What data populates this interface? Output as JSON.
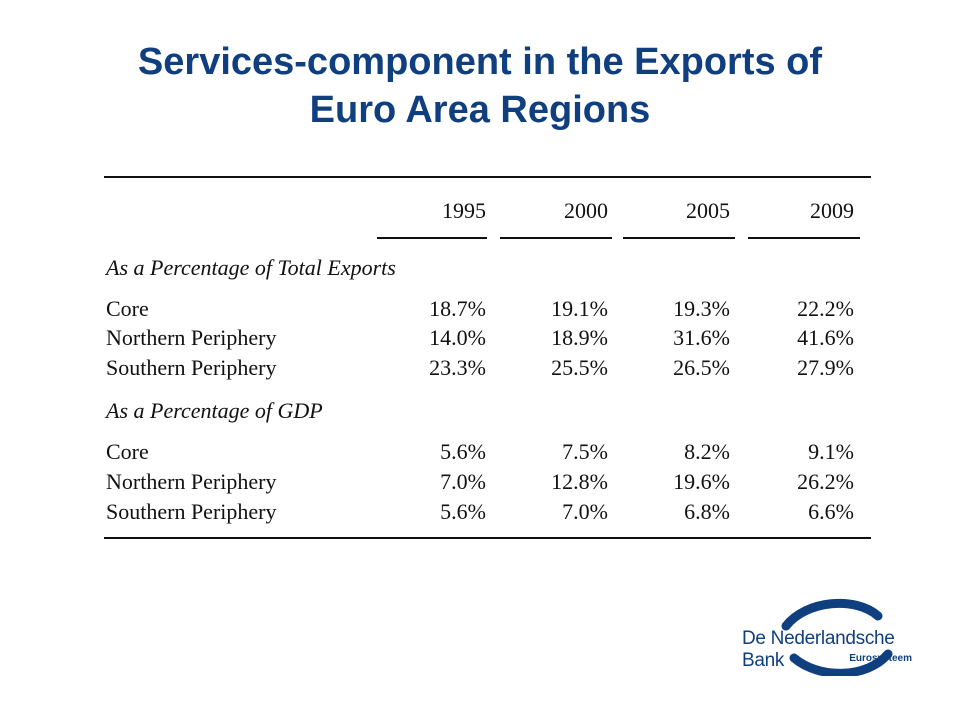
{
  "title": {
    "line1": "Services-component in the Exports of",
    "line2": "Euro Area Regions"
  },
  "table": {
    "years": [
      "1995",
      "2000",
      "2005",
      "2009"
    ],
    "sections": [
      {
        "heading": "As a Percentage of Total Exports",
        "rows": [
          {
            "label": "Core",
            "values": [
              "18.7%",
              "19.1%",
              "19.3%",
              "22.2%"
            ]
          },
          {
            "label": "Northern Periphery",
            "values": [
              "14.0%",
              "18.9%",
              "31.6%",
              "41.6%"
            ]
          },
          {
            "label": "Southern Periphery",
            "values": [
              "23.3%",
              "25.5%",
              "26.5%",
              "27.9%"
            ]
          }
        ]
      },
      {
        "heading": "As a Percentage of GDP",
        "rows": [
          {
            "label": "Core",
            "values": [
              "5.6%",
              "7.5%",
              "8.2%",
              "9.1%"
            ]
          },
          {
            "label": "Northern Periphery",
            "values": [
              "7.0%",
              "12.8%",
              "19.6%",
              "26.2%"
            ]
          },
          {
            "label": "Southern Periphery",
            "values": [
              "5.6%",
              "7.0%",
              "6.8%",
              "6.6%"
            ]
          }
        ]
      }
    ]
  },
  "logo": {
    "name": "De Nederlandsche Bank",
    "subtitle": "Eurosysteem",
    "color": "#0f3f7f"
  }
}
